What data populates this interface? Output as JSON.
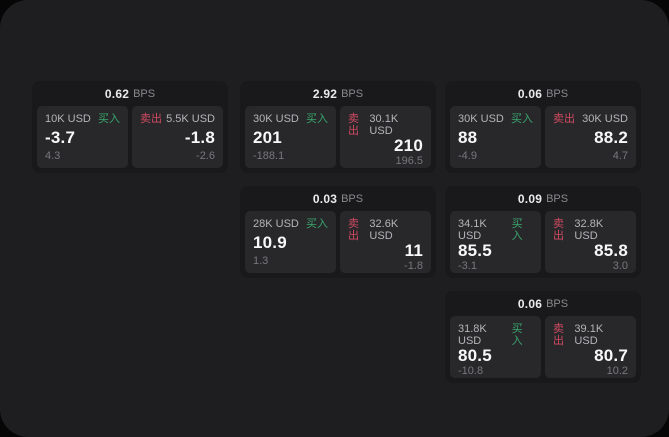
{
  "labels": {
    "bps_unit": "BPS",
    "buy": "买入",
    "sell": "卖出"
  },
  "colors": {
    "surface_bg": "#1e1e20",
    "card_bg": "#19191b",
    "tile_bg": "#28282b",
    "buy_green": "#3aa56d",
    "sell_red": "#d04a60",
    "price_text": "#f8f8f9",
    "muted_text": "#78787c"
  },
  "cards": [
    {
      "bps": "0.62",
      "buy": {
        "amount": "10K USD",
        "price": "-3.7",
        "delta": "4.3"
      },
      "sell": {
        "amount": "5.5K USD",
        "price": "-1.8",
        "delta": "-2.6"
      }
    },
    {
      "bps": "2.92",
      "buy": {
        "amount": "30K USD",
        "price": "201",
        "delta": "-188.1"
      },
      "sell": {
        "amount": "30.1K USD",
        "price": "210",
        "delta": "196.5"
      }
    },
    {
      "bps": "0.06",
      "buy": {
        "amount": "30K USD",
        "price": "88",
        "delta": "-4.9"
      },
      "sell": {
        "amount": "30K USD",
        "price": "88.2",
        "delta": "4.7"
      }
    },
    {
      "bps": "0.03",
      "buy": {
        "amount": "28K USD",
        "price": "10.9",
        "delta": "1.3"
      },
      "sell": {
        "amount": "32.6K USD",
        "price": "11",
        "delta": "-1.8"
      }
    },
    {
      "bps": "0.09",
      "buy": {
        "amount": "34.1K USD",
        "price": "85.5",
        "delta": "-3.1"
      },
      "sell": {
        "amount": "32.8K USD",
        "price": "85.8",
        "delta": "3.0"
      }
    },
    {
      "bps": "0.06",
      "buy": {
        "amount": "31.8K USD",
        "price": "80.5",
        "delta": "-10.8"
      },
      "sell": {
        "amount": "39.1K USD",
        "price": "80.7",
        "delta": "10.2"
      }
    }
  ]
}
